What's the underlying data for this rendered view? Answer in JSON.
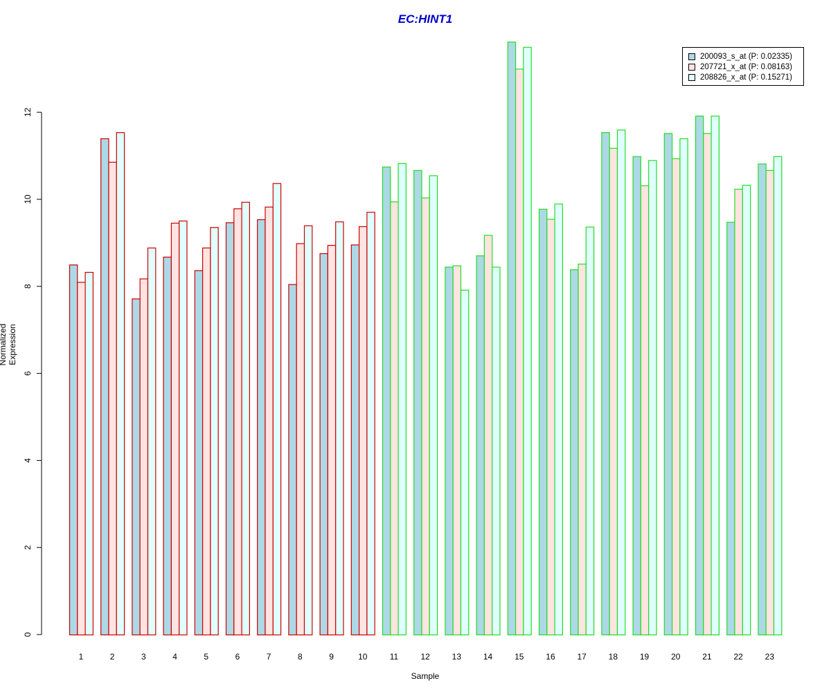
{
  "chart_data": {
    "type": "bar",
    "title": "EC:HINT1",
    "xlabel": "Sample",
    "ylabel": "Normalized Expression",
    "ylim": [
      0,
      13.6
    ],
    "yticks": [
      0,
      2,
      4,
      6,
      8,
      10,
      12
    ],
    "categories": [
      "1",
      "2",
      "3",
      "4",
      "5",
      "6",
      "7",
      "8",
      "9",
      "10",
      "11",
      "12",
      "13",
      "14",
      "15",
      "16",
      "17",
      "18",
      "19",
      "20",
      "21",
      "22",
      "23"
    ],
    "group_border_colors": [
      "#cc0000",
      "#cc0000",
      "#cc0000",
      "#cc0000",
      "#cc0000",
      "#cc0000",
      "#cc0000",
      "#cc0000",
      "#cc0000",
      "#cc0000",
      "#22dd22",
      "#22dd22",
      "#22dd22",
      "#22dd22",
      "#22dd22",
      "#22dd22",
      "#22dd22",
      "#22dd22",
      "#22dd22",
      "#22dd22",
      "#22dd22",
      "#22dd22",
      "#22dd22"
    ],
    "series": [
      {
        "name": "200093_s_at (P: 0.02335)",
        "fill": "#add8e6",
        "values": [
          8.5,
          11.4,
          7.72,
          8.68,
          8.37,
          9.47,
          9.54,
          8.05,
          8.76,
          8.96,
          10.75,
          10.67,
          8.45,
          8.71,
          13.62,
          9.78,
          8.39,
          11.54,
          10.99,
          11.52,
          11.92,
          9.48,
          10.82
        ]
      },
      {
        "name": "207721_x_at (P: 0.08163)",
        "fill": "#ffe4e1",
        "values": [
          8.1,
          10.86,
          8.18,
          9.46,
          8.89,
          9.79,
          9.83,
          8.99,
          8.95,
          9.38,
          9.95,
          10.04,
          8.48,
          9.18,
          13.0,
          9.55,
          8.52,
          11.18,
          10.32,
          10.94,
          11.52,
          10.24,
          10.67
        ]
      },
      {
        "name": "208826_x_at (P: 0.15271)",
        "fill": "#e0ffff",
        "values": [
          8.33,
          11.54,
          8.89,
          9.51,
          9.36,
          9.94,
          10.37,
          9.4,
          9.49,
          9.71,
          10.83,
          10.55,
          7.92,
          8.45,
          13.5,
          9.9,
          9.37,
          11.6,
          10.9,
          11.4,
          11.92,
          10.33,
          10.99
        ]
      }
    ],
    "legend_position": "top-right",
    "grid": false
  }
}
